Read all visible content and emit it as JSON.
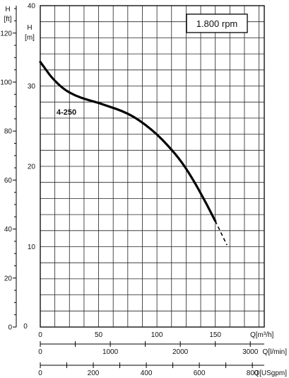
{
  "chart_data": {
    "type": "line",
    "title": "",
    "speed_label": "1.800 rpm",
    "curve_label": "4-250",
    "left_axis": {
      "unit_top": "H",
      "unit_bottom": "[ft]",
      "ticks": [
        0,
        20,
        40,
        60,
        80,
        100,
        120
      ],
      "range": [
        0,
        131.2
      ]
    },
    "inner_axis": {
      "unit_top": "H",
      "unit_bottom": "[m]",
      "ticks": [
        10,
        20,
        30,
        40
      ],
      "range": [
        0,
        40
      ]
    },
    "x_axes": [
      {
        "name": "m3h",
        "label": "Q[m³/h]",
        "ticks": [
          0,
          50,
          100,
          150
        ],
        "range": [
          0,
          192
        ],
        "minor_step": 12.5
      },
      {
        "name": "lmin",
        "label": "Q[l/min]",
        "ticks": [
          0,
          1000,
          2000,
          3000
        ],
        "range": [
          0,
          3200
        ],
        "minor_step": 500
      },
      {
        "name": "usgpm",
        "label": "Q[USgpm]",
        "ticks": [
          0,
          200,
          400,
          600,
          800
        ],
        "range": [
          0,
          845
        ],
        "minor_step": 100
      }
    ],
    "series": [
      {
        "name": "4-250",
        "x": [
          0,
          5,
          10,
          20,
          30,
          40,
          50,
          60,
          70,
          80,
          90,
          100,
          110,
          120,
          130,
          140,
          145,
          150,
          155,
          160
        ],
        "y": [
          33.0,
          32.0,
          31.0,
          29.6,
          28.8,
          28.3,
          27.9,
          27.4,
          26.9,
          26.2,
          25.2,
          24.0,
          22.5,
          20.8,
          18.6,
          16.0,
          14.6,
          13.2,
          11.7,
          10.2
        ],
        "dashed_from_x": 150
      }
    ]
  }
}
